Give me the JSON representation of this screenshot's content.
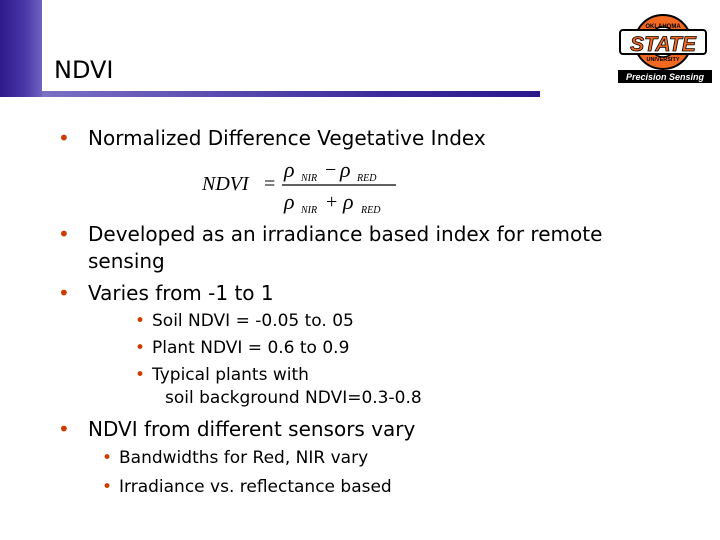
{
  "slide": {
    "title": "NDVI",
    "logo": {
      "top_text": "OKLAHOMA",
      "main_text": "STATE",
      "sub_text": "UNIVERSITY",
      "banner_text": "Precision Sensing",
      "color_orange": "#f26a21",
      "color_black": "#000000"
    },
    "accent_color": "#2e1a8a",
    "bullet_color": "#cc3d00"
  },
  "content": {
    "bullet1": "Normalized Difference Vegetative Index",
    "formula": {
      "lhs": "NDVI",
      "symbol": "ρ",
      "sub_nir": "NIR",
      "sub_red": "RED"
    },
    "bullet2_line1": "Developed as an irradiance based index for remote",
    "bullet2_line2": "sensing",
    "bullet3": "Varies from -1 to 1",
    "sub_bullets_ranges": [
      "Soil NDVI = -0.05 to. 05",
      "Plant NDVI  = 0.6 to 0.9",
      "Typical plants with"
    ],
    "typical_line2": "soil background NDVI=0.3-0.8",
    "bullet4": "NDVI from different sensors vary",
    "sub_bullets_sensors": [
      "Bandwidths for Red, NIR vary",
      "Irradiance vs. reflectance based"
    ]
  }
}
